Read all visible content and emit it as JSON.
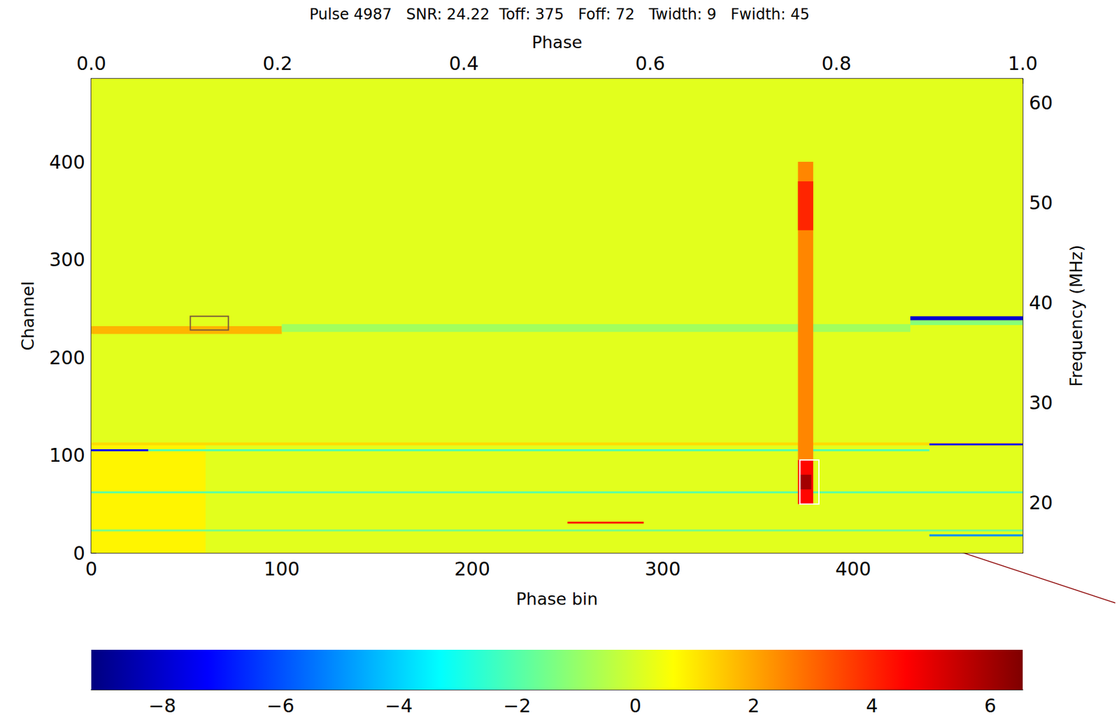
{
  "chart_data": {
    "type": "heatmap",
    "title": "Pulse 4987   SNR: 24.22  Toff: 375   Foff: 72   Twidth: 9   Fwidth: 45",
    "xlabel": "Phase bin",
    "xlim": [
      0,
      489
    ],
    "xticks": [
      0,
      100,
      200,
      300,
      400
    ],
    "x2label": "Phase",
    "x2lim": [
      0,
      1
    ],
    "x2ticks": [
      {
        "value": 0,
        "label": "0.0"
      },
      0.2,
      0.4,
      0.6,
      0.8,
      {
        "value": 1,
        "label": "1.0"
      }
    ],
    "ylabel": "Channel",
    "ylim": [
      0,
      485
    ],
    "yticks": [
      0,
      100,
      200,
      300,
      400
    ],
    "y2label": "Frequency (MHz)",
    "y2lim": [
      15,
      62.4
    ],
    "y2ticks": [
      20,
      30,
      40,
      50,
      60
    ],
    "cells": [
      [
        0,
        489,
        0,
        485,
        0.2
      ],
      [
        0,
        60,
        0,
        110,
        0.8
      ],
      [
        0,
        100,
        224,
        232,
        1.8
      ],
      [
        100,
        430,
        226,
        234,
        -0.8
      ],
      [
        430,
        489,
        233,
        238,
        -1.2
      ],
      [
        430,
        489,
        238,
        242,
        -8
      ],
      [
        0,
        489,
        110,
        113,
        1.2
      ],
      [
        0,
        30,
        104,
        106,
        -7
      ],
      [
        30,
        440,
        104,
        106,
        -2
      ],
      [
        440,
        489,
        110,
        112,
        -7
      ],
      [
        0,
        489,
        61,
        63,
        -2
      ],
      [
        0,
        489,
        22,
        24,
        -1.5
      ],
      [
        440,
        489,
        17,
        19,
        -5
      ],
      [
        250,
        290,
        30,
        32,
        4.5
      ],
      [
        371,
        379,
        95,
        400,
        2.5
      ],
      [
        371,
        379,
        330,
        380,
        4
      ],
      [
        371,
        379,
        50,
        95,
        4.5
      ],
      [
        372,
        378,
        65,
        80,
        6
      ]
    ],
    "boxes": [
      {
        "x": [
          52,
          72
        ],
        "y": [
          228,
          242
        ],
        "color": "#7a5c3a"
      },
      {
        "x": [
          372,
          382
        ],
        "y": [
          50,
          95
        ],
        "color": "#ffffff"
      }
    ],
    "colorbar": {
      "range": [
        -9.2,
        6.55
      ],
      "ticks": [
        {
          "value": -8,
          "label": "−8"
        },
        {
          "value": -6,
          "label": "−6"
        },
        {
          "value": -4,
          "label": "−4"
        },
        {
          "value": -2,
          "label": "−2"
        },
        0,
        2,
        4,
        6
      ],
      "colors": [
        "#00007f",
        "#0000ff",
        "#007fff",
        "#00ffff",
        "#7fff7f",
        "#ffff00",
        "#ff7f00",
        "#ff0000",
        "#7f0000"
      ]
    }
  }
}
